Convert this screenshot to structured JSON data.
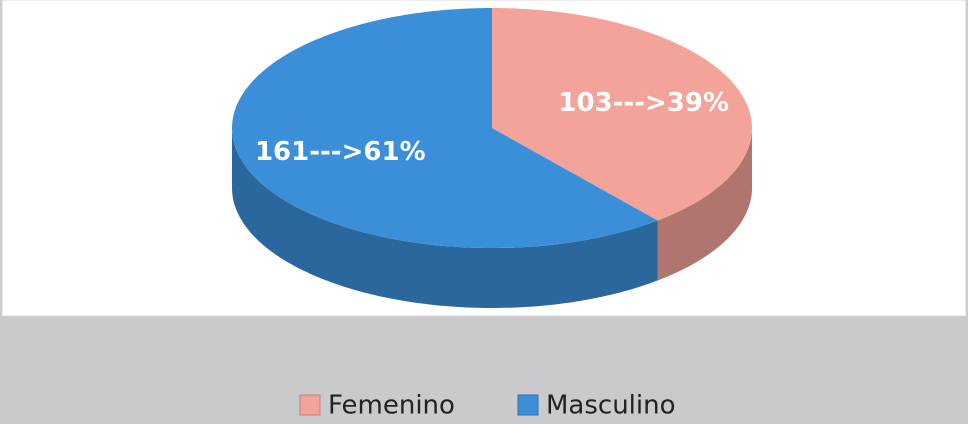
{
  "chart_data": {
    "type": "pie3d",
    "categories": [
      "Femenino",
      "Masculino"
    ],
    "values": [
      103,
      161
    ],
    "value_labels": [
      "103--->39%",
      "161--->61%"
    ],
    "colors": [
      "#f4a39a",
      "#3b8fd9"
    ],
    "legend": "bottom"
  }
}
